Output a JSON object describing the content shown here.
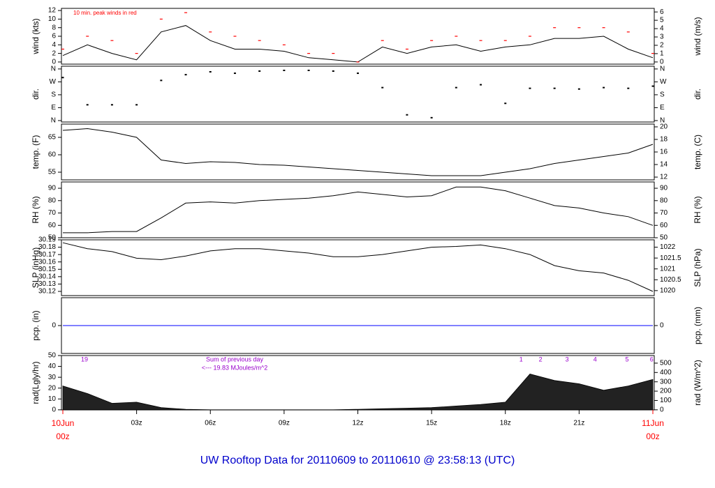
{
  "page": {
    "title": "UW Rooftop Data for 20110609  to  20110610 @ 23:58:13  (UTC)"
  },
  "chart_data": [
    {
      "type": "line",
      "ylabel": "wind (kts)",
      "y2label": "wind (m/s)",
      "annotation": "10 min. peak winds in red",
      "x": [
        0,
        1,
        2,
        3,
        4,
        5,
        6,
        7,
        8,
        9,
        10,
        11,
        12,
        13,
        14,
        15,
        16,
        17,
        18,
        19,
        20,
        21,
        22,
        23,
        24
      ],
      "xlim": [
        0,
        24
      ],
      "ylim": [
        -0.5,
        12.5
      ],
      "yticks": [
        0,
        2,
        4,
        6,
        8,
        10,
        12
      ],
      "y2lim": [
        -0.26,
        6.43
      ],
      "y2ticks": [
        0,
        1,
        2,
        3,
        4,
        5,
        6
      ],
      "series": [
        {
          "color": "#000000",
          "values": [
            1.5,
            4,
            2,
            0.5,
            7,
            8.5,
            5,
            3,
            3,
            2.5,
            1,
            0.5,
            0,
            3.5,
            2,
            3.5,
            4,
            2.5,
            3.5,
            4,
            5.5,
            5.5,
            6,
            3,
            1
          ]
        },
        {
          "color": "#ff0000",
          "marker": "dash",
          "values": [
            3,
            6,
            5,
            2,
            10,
            11.5,
            7,
            6,
            5,
            4,
            2,
            2,
            0,
            5,
            3,
            5,
            6,
            5,
            5,
            6,
            8,
            8,
            8,
            7,
            2
          ]
        }
      ]
    },
    {
      "type": "scatter",
      "ylabel": "dir.",
      "y2label": "dir.",
      "x": [
        0,
        1,
        2,
        3,
        4,
        5,
        6,
        7,
        8,
        9,
        10,
        11,
        12,
        13,
        14,
        15,
        16,
        17,
        18,
        19,
        20,
        21,
        22,
        23,
        24
      ],
      "xlim": [
        0,
        24
      ],
      "ylim": [
        -10,
        379
      ],
      "yticks": [
        {
          "value": 0,
          "label": "N"
        },
        {
          "value": 90,
          "label": "E"
        },
        {
          "value": 180,
          "label": "S"
        },
        {
          "value": 270,
          "label": "W"
        },
        {
          "value": 360,
          "label": "N"
        }
      ],
      "y2lim": [
        -10,
        379
      ],
      "y2ticks": [
        {
          "value": 0,
          "label": "N"
        },
        {
          "value": 90,
          "label": "E"
        },
        {
          "value": 180,
          "label": "S"
        },
        {
          "value": 270,
          "label": "W"
        },
        {
          "value": 360,
          "label": "N"
        }
      ],
      "series": [
        {
          "color": "#000000",
          "values": [
            300,
            110,
            110,
            110,
            280,
            320,
            340,
            330,
            345,
            350,
            350,
            345,
            330,
            230,
            40,
            20,
            230,
            250,
            120,
            225,
            225,
            220,
            230,
            225,
            240
          ]
        }
      ]
    },
    {
      "type": "line",
      "ylabel": "temp. (F)",
      "y2label": "temp. (C)",
      "x": [
        0,
        1,
        2,
        3,
        4,
        5,
        6,
        7,
        8,
        9,
        10,
        11,
        12,
        13,
        14,
        15,
        16,
        17,
        18,
        19,
        20,
        21,
        22,
        23,
        24
      ],
      "xlim": [
        0,
        24
      ],
      "ylim": [
        52.8,
        68.8
      ],
      "yticks": [
        55,
        60,
        65
      ],
      "y2lim": [
        11.56,
        20.44
      ],
      "y2ticks": [
        12,
        14,
        16,
        18,
        20
      ],
      "series": [
        {
          "color": "#000000",
          "values": [
            67,
            67.5,
            66.5,
            65,
            58.5,
            57.5,
            58,
            57.8,
            57.2,
            57,
            56.5,
            56,
            55.5,
            55,
            54.5,
            54,
            54,
            54,
            55,
            56,
            57.5,
            58.5,
            59.5,
            60.5,
            63
          ]
        }
      ]
    },
    {
      "type": "line",
      "ylabel": "RH (%)",
      "y2label": "RH (%)",
      "x": [
        0,
        1,
        2,
        3,
        4,
        5,
        6,
        7,
        8,
        9,
        10,
        11,
        12,
        13,
        14,
        15,
        16,
        17,
        18,
        19,
        20,
        21,
        22,
        23,
        24
      ],
      "xlim": [
        0,
        24
      ],
      "ylim": [
        50,
        95.1
      ],
      "yticks": [
        50,
        60,
        70,
        80,
        90
      ],
      "y2lim": [
        50,
        95.1
      ],
      "y2ticks": [
        50,
        60,
        70,
        80,
        90
      ],
      "series": [
        {
          "color": "#000000",
          "values": [
            54,
            54,
            55,
            55,
            66,
            78,
            79,
            78,
            80,
            81,
            82,
            84,
            87,
            85,
            83,
            84,
            91,
            91,
            88,
            82,
            76,
            74,
            70,
            67,
            60
          ]
        }
      ]
    },
    {
      "type": "line",
      "ylabel": "SLP (inHg)",
      "y2label": "SLP (hPa)",
      "x": [
        0,
        1,
        2,
        3,
        4,
        5,
        6,
        7,
        8,
        9,
        10,
        11,
        12,
        13,
        14,
        15,
        16,
        17,
        18,
        19,
        20,
        21,
        22,
        23,
        24
      ],
      "xlim": [
        0,
        24
      ],
      "ylim": [
        30.1143,
        30.19
      ],
      "yticks": [
        30.12,
        30.13,
        30.14,
        30.15,
        30.16,
        30.17,
        30.18,
        30.19
      ],
      "y2lim": [
        1019.77,
        1022.34
      ],
      "y2ticks": [
        1020,
        1020.5,
        1021,
        1021.5,
        1022
      ],
      "series": [
        {
          "color": "#000000",
          "values": [
            30.186,
            30.178,
            30.174,
            30.165,
            30.163,
            30.168,
            30.175,
            30.178,
            30.178,
            30.175,
            30.172,
            30.167,
            30.167,
            30.17,
            30.175,
            30.18,
            30.181,
            30.183,
            30.178,
            30.17,
            30.155,
            30.148,
            30.145,
            30.135,
            30.12
          ]
        }
      ]
    },
    {
      "type": "line",
      "ylabel": "pcp. (in)",
      "y2label": "pcp. (mm)",
      "x": [
        0,
        1,
        2,
        3,
        4,
        5,
        6,
        7,
        8,
        9,
        10,
        11,
        12,
        13,
        14,
        15,
        16,
        17,
        18,
        19,
        20,
        21,
        22,
        23,
        24
      ],
      "xlim": [
        0,
        24
      ],
      "ylim": [
        -1,
        1
      ],
      "yticks": [
        0
      ],
      "y2lim": [
        -25.4,
        25.4
      ],
      "y2ticks": [
        0
      ],
      "series": [
        {
          "color": "#0000ff",
          "values": [
            0,
            0,
            0,
            0,
            0,
            0,
            0,
            0,
            0,
            0,
            0,
            0,
            0,
            0,
            0,
            0,
            0,
            0,
            0,
            0,
            0,
            0,
            0,
            0,
            0
          ]
        }
      ]
    },
    {
      "type": "area",
      "ylabel": "rad(Lgly/hr)",
      "y2label": "rad (W/m^2)",
      "annotations": [
        "Sum of previous day",
        "<--- 19.83 MJoules/m^2"
      ],
      "annotation_color": "#9900cc",
      "period_labels": [
        {
          "value": 0.88,
          "label": "19"
        },
        {
          "value": 18.64,
          "label": "1"
        },
        {
          "value": 19.43,
          "label": "2"
        },
        {
          "value": 20.51,
          "label": "3"
        },
        {
          "value": 21.65,
          "label": "4"
        },
        {
          "value": 22.95,
          "label": "5"
        },
        {
          "value": 23.95,
          "label": "6"
        }
      ],
      "x": [
        0,
        1,
        2,
        3,
        4,
        5,
        6,
        7,
        8,
        9,
        10,
        11,
        12,
        13,
        14,
        15,
        16,
        17,
        18,
        19,
        20,
        21,
        22,
        23,
        24
      ],
      "xlim": [
        0,
        24
      ],
      "ylim": [
        -0.1,
        50
      ],
      "yticks": [
        0,
        10,
        20,
        30,
        40,
        50
      ],
      "y2lim": [
        -1.2,
        581.5
      ],
      "y2ticks": [
        0,
        100,
        200,
        300,
        400,
        500
      ],
      "series": [
        {
          "color": "#222222",
          "values": [
            22,
            15,
            6,
            7,
            2,
            0.5,
            0,
            0,
            0,
            0,
            0,
            0,
            0.5,
            1,
            1.5,
            2,
            3.5,
            5,
            7,
            33,
            27,
            24,
            18,
            22,
            28
          ]
        }
      ],
      "xticks": [
        {
          "value": 0,
          "label": "00z"
        },
        {
          "value": 3,
          "label": "03z"
        },
        {
          "value": 6,
          "label": "06z"
        },
        {
          "value": 9,
          "label": "09z"
        },
        {
          "value": 12,
          "label": "12z"
        },
        {
          "value": 15,
          "label": "15z"
        },
        {
          "value": 18,
          "label": "18z"
        },
        {
          "value": 21,
          "label": "21z"
        },
        {
          "value": 24,
          "label": "00z"
        }
      ],
      "date_labels": [
        {
          "value": 0,
          "label": "10Jun"
        },
        {
          "value": 24,
          "label": "11Jun"
        }
      ],
      "date_color": "#ff0000"
    }
  ]
}
